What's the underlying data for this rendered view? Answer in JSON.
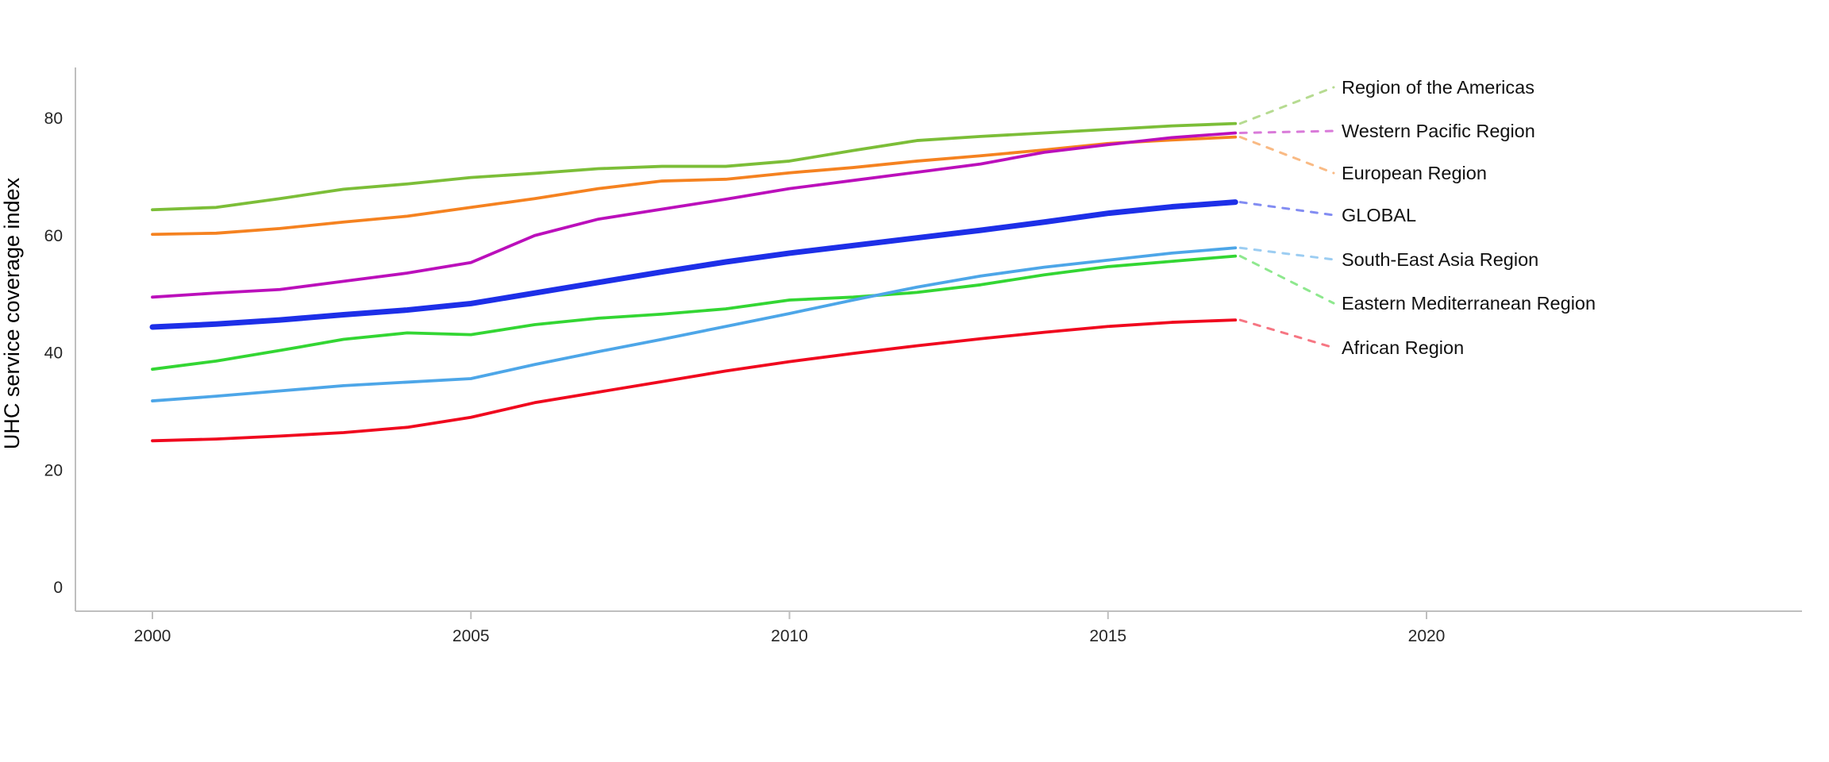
{
  "chart_data": {
    "type": "line",
    "title": "",
    "xlabel": "",
    "ylabel": "UHC service coverage index",
    "grid": false,
    "legend_position": "right-edge-labels-with-dotted-leaders",
    "xlim": [
      1998.8,
      2025.9
    ],
    "ylim": [
      -4,
      88.6
    ],
    "xticks": [
      2000,
      2005,
      2010,
      2015,
      2020
    ],
    "yticks": [
      0,
      20,
      40,
      60,
      80
    ],
    "x": [
      2000,
      2001,
      2002,
      2003,
      2004,
      2005,
      2006,
      2007,
      2008,
      2009,
      2010,
      2011,
      2012,
      2013,
      2014,
      2015,
      2016,
      2017
    ],
    "series": [
      {
        "name": "Region of the Americas",
        "color": "#7CBE38",
        "line_width": 3.8,
        "values": [
          64.4,
          64.8,
          66.3,
          67.9,
          68.8,
          69.9,
          70.6,
          71.4,
          71.8,
          71.8,
          72.7,
          74.5,
          76.2,
          76.9,
          77.5,
          78.1,
          78.7,
          79.1
        ]
      },
      {
        "name": "European Region",
        "color": "#F58220",
        "line_width": 3.8,
        "values": [
          60.2,
          60.4,
          61.2,
          62.3,
          63.3,
          64.8,
          66.3,
          68.0,
          69.3,
          69.6,
          70.7,
          71.6,
          72.7,
          73.6,
          74.6,
          75.7,
          76.3,
          76.8
        ]
      },
      {
        "name": "Western Pacific Region",
        "color": "#BB0FBB",
        "line_width": 3.8,
        "values": [
          49.5,
          50.2,
          50.8,
          52.2,
          53.6,
          55.4,
          60.0,
          62.8,
          64.5,
          66.2,
          68.0,
          69.4,
          70.8,
          72.2,
          74.2,
          75.5,
          76.7,
          77.5
        ]
      },
      {
        "name": "GLOBAL",
        "color": "#1D2FE8",
        "line_width": 7,
        "values": [
          44.4,
          44.9,
          45.6,
          46.5,
          47.3,
          48.4,
          50.2,
          52.0,
          53.8,
          55.5,
          57.0,
          58.3,
          59.6,
          60.9,
          62.3,
          63.8,
          64.9,
          65.7
        ]
      },
      {
        "name": "Eastern Mediterranean Region",
        "color": "#33D633",
        "line_width": 3.8,
        "values": [
          37.2,
          38.6,
          40.4,
          42.3,
          43.4,
          43.1,
          44.8,
          45.9,
          46.6,
          47.5,
          49.0,
          49.5,
          50.3,
          51.6,
          53.3,
          54.7,
          55.6,
          56.5
        ]
      },
      {
        "name": "South-East Asia Region",
        "color": "#4DA6E8",
        "line_width": 3.8,
        "values": [
          31.8,
          32.6,
          33.5,
          34.4,
          35.0,
          35.6,
          38.0,
          40.2,
          42.3,
          44.5,
          46.7,
          49.0,
          51.2,
          53.1,
          54.6,
          55.8,
          57.0,
          57.9
        ]
      },
      {
        "name": "African Region",
        "color": "#F0081E",
        "line_width": 3.8,
        "values": [
          25.0,
          25.3,
          25.8,
          26.4,
          27.3,
          29.0,
          31.5,
          33.3,
          35.1,
          36.9,
          38.5,
          39.9,
          41.2,
          42.4,
          43.5,
          44.5,
          45.2,
          45.6
        ]
      }
    ],
    "legend": [
      "Region of the Americas",
      "Western Pacific Region",
      "European Region",
      "GLOBAL",
      "South-East Asia Region",
      "Eastern Mediterranean Region",
      "African Region"
    ],
    "colors": {
      "axis": "#BFBFBF",
      "tick_label": "#262626",
      "legend_label": "#111111",
      "background": "#ffffff"
    }
  }
}
